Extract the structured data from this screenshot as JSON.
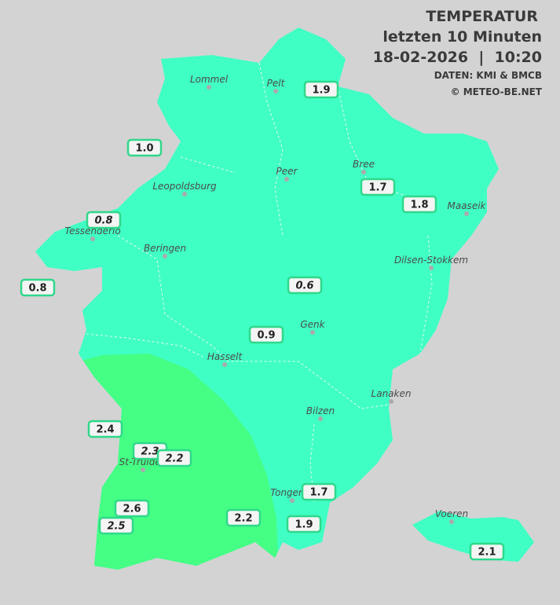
{
  "header": {
    "title": "TEMPERATUR",
    "subtitle": "letzten 10 Minuten",
    "datetime": "18-02-2026  |  10:20",
    "source": "DATEN: KMI & BMCB",
    "copyright": "© METEO-BE.NET"
  },
  "cities": [
    "Lommel",
    "Pelt",
    "Peer",
    "Bree",
    "Leopoldsburg",
    "Maaseik",
    "Tessenderlo",
    "Beringen",
    "Dilsen-Stokkem",
    "Genk",
    "Hasselt",
    "Lanaken",
    "Bilzen",
    "St-Truiden",
    "Tongeren",
    "Voeren"
  ],
  "stations": [
    {
      "value": "1.9",
      "italic": false
    },
    {
      "value": "1.0",
      "italic": false
    },
    {
      "value": "1.7",
      "italic": false
    },
    {
      "value": "1.8",
      "italic": false
    },
    {
      "value": "0.8",
      "italic": true
    },
    {
      "value": "0.8",
      "italic": false
    },
    {
      "value": "0.6",
      "italic": true
    },
    {
      "value": "0.9",
      "italic": false
    },
    {
      "value": "2.4",
      "italic": false
    },
    {
      "value": "2.3",
      "italic": true
    },
    {
      "value": "2.2",
      "italic": true
    },
    {
      "value": "2.6",
      "italic": false
    },
    {
      "value": "2.5",
      "italic": true
    },
    {
      "value": "2.2",
      "italic": false
    },
    {
      "value": "1.7",
      "italic": false
    },
    {
      "value": "1.9",
      "italic": false
    },
    {
      "value": "2.1",
      "italic": false
    }
  ]
}
